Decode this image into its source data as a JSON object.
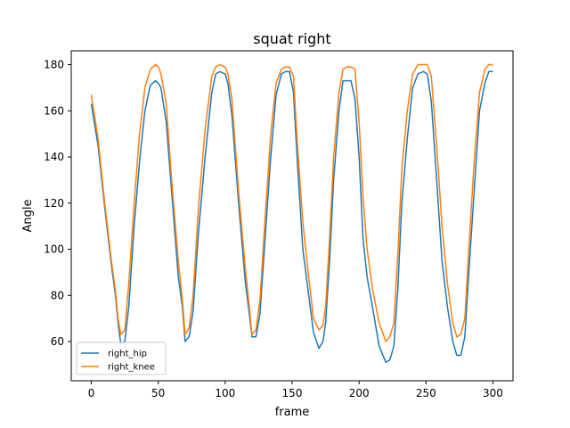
{
  "chart_data": {
    "type": "line",
    "title": "squat right",
    "xlabel": "frame",
    "ylabel": "Angle",
    "xlim": [
      -15,
      315
    ],
    "ylim": [
      43,
      186
    ],
    "xticks": [
      0,
      50,
      100,
      150,
      200,
      250,
      300
    ],
    "yticks": [
      60,
      80,
      100,
      120,
      140,
      160,
      180
    ],
    "grid": false,
    "legend_position": "lower-left",
    "series": [
      {
        "name": "right_hip",
        "color": "#1f77b4",
        "x": [
          0,
          5,
          10,
          15,
          18,
          20,
          22,
          25,
          28,
          32,
          36,
          40,
          44,
          48,
          50,
          52,
          56,
          60,
          65,
          68,
          70,
          73,
          76,
          80,
          85,
          90,
          93,
          96,
          100,
          102,
          105,
          110,
          115,
          118,
          120,
          123,
          126,
          130,
          134,
          138,
          142,
          145,
          148,
          151,
          154,
          158,
          162,
          166,
          170,
          173,
          175,
          178,
          181,
          185,
          188,
          191,
          194,
          197,
          200,
          203,
          206,
          210,
          215,
          220,
          223,
          226,
          229,
          232,
          236,
          240,
          244,
          248,
          251,
          254,
          258,
          262,
          266,
          270,
          273,
          276,
          279,
          282,
          286,
          290,
          294,
          297,
          300
        ],
        "values": [
          163,
          145,
          118,
          93,
          80,
          68,
          59,
          60,
          75,
          110,
          138,
          160,
          171,
          173,
          172,
          170,
          155,
          125,
          88,
          75,
          60,
          62,
          73,
          107,
          140,
          168,
          176,
          177,
          176,
          172,
          158,
          120,
          86,
          72,
          62,
          62,
          72,
          106,
          140,
          167,
          176,
          177,
          177,
          168,
          137,
          100,
          82,
          64,
          57,
          60,
          68,
          95,
          130,
          160,
          173,
          173,
          173,
          165,
          140,
          104,
          88,
          75,
          58,
          51,
          52,
          58,
          83,
          120,
          148,
          170,
          176,
          177,
          176,
          164,
          130,
          95,
          75,
          60,
          54,
          54,
          62,
          90,
          125,
          160,
          172,
          177,
          177
        ]
      },
      {
        "name": "right_knee",
        "color": "#ff7f0e",
        "x": [
          0,
          5,
          10,
          15,
          18,
          20,
          22,
          25,
          28,
          32,
          36,
          40,
          44,
          48,
          50,
          52,
          56,
          60,
          65,
          68,
          70,
          73,
          76,
          80,
          85,
          90,
          93,
          96,
          100,
          102,
          105,
          110,
          115,
          118,
          120,
          123,
          126,
          130,
          134,
          138,
          142,
          145,
          148,
          151,
          154,
          158,
          162,
          166,
          170,
          173,
          175,
          178,
          181,
          185,
          188,
          191,
          194,
          197,
          200,
          203,
          206,
          210,
          215,
          220,
          223,
          226,
          229,
          232,
          236,
          240,
          244,
          248,
          251,
          254,
          258,
          262,
          266,
          270,
          273,
          276,
          279,
          282,
          286,
          290,
          294,
          297,
          300
        ],
        "values": [
          167,
          148,
          120,
          95,
          82,
          70,
          63,
          65,
          85,
          120,
          150,
          170,
          178,
          180,
          179,
          176,
          163,
          130,
          95,
          78,
          63,
          66,
          80,
          118,
          152,
          175,
          179,
          180,
          179,
          176,
          165,
          125,
          92,
          75,
          63,
          65,
          78,
          115,
          150,
          172,
          178,
          179,
          179,
          175,
          145,
          112,
          90,
          70,
          65,
          67,
          75,
          105,
          140,
          168,
          178,
          179,
          179,
          178,
          155,
          122,
          100,
          83,
          68,
          60,
          62,
          68,
          98,
          135,
          160,
          176,
          180,
          180,
          180,
          175,
          145,
          110,
          85,
          68,
          62,
          63,
          70,
          100,
          138,
          168,
          178,
          180,
          180
        ]
      }
    ]
  }
}
